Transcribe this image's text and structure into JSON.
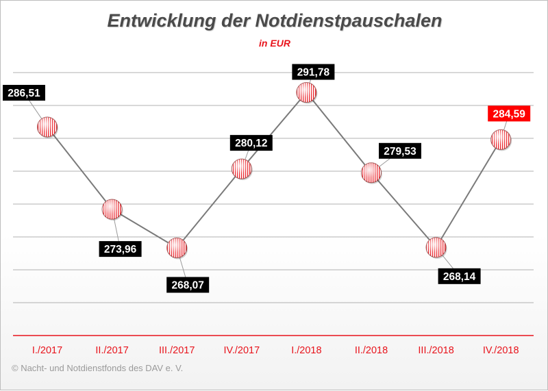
{
  "title": "Entwicklung der Notdienstpauschalen",
  "subtitle": "in EUR",
  "copyright": "© Nacht- und Notdienstfonds  des DAV e. V.",
  "colors": {
    "accent": "#e8141c",
    "line": "#7a7a7a",
    "label_bg": "#000000",
    "label_highlight_bg": "#ff0000",
    "grid": "#b0b0b0"
  },
  "chart_data": {
    "type": "line",
    "title": "Entwicklung der Notdienstpauschalen",
    "subtitle": "in EUR",
    "categories": [
      "I./2017",
      "II./2017",
      "III./2017",
      "IV./2017",
      "I./2018",
      "II./2018",
      "III./2018",
      "IV./2018"
    ],
    "series": [
      {
        "values": [
          286.51,
          273.96,
          268.07,
          280.12,
          291.78,
          279.53,
          268.14,
          284.59
        ],
        "labels": [
          "286,51",
          "273,96",
          "268,07",
          "280,12",
          "291,78",
          "279,53",
          "268,14",
          "284,59"
        ]
      }
    ],
    "highlighted_index": 7,
    "grid": true,
    "y_axis_labels_shown": false,
    "legend": "none"
  }
}
